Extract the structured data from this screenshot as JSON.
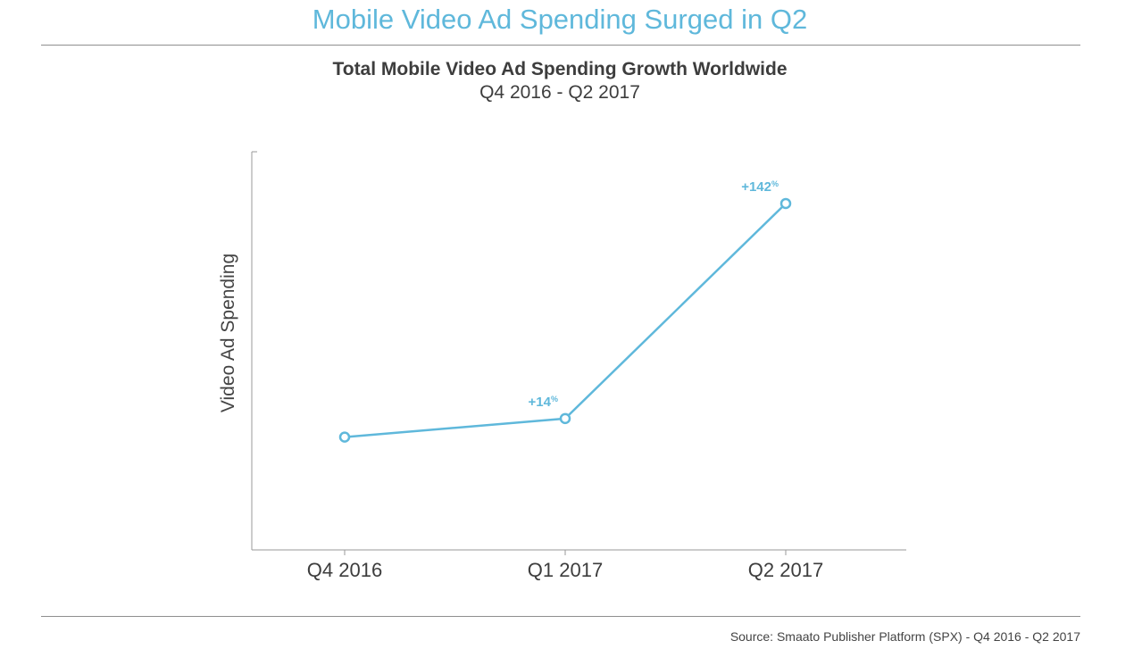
{
  "page": {
    "title": "Mobile Video Ad Spending Surged in Q2",
    "source": "Source: Smaato Publisher Platform (SPX) - Q4 2016 - Q2 2017"
  },
  "colors": {
    "accent": "#5fb8db",
    "axis": "#9a9a9a",
    "text": "#3d3d3d"
  },
  "chart_data": {
    "type": "line",
    "title": "Total Mobile Video Ad Spending Growth Worldwide",
    "subtitle": "Q4 2016 - Q2 2017",
    "xlabel": "",
    "ylabel": "Video Ad Spending",
    "categories": [
      "Q4 2016",
      "Q1 2017",
      "Q2 2017"
    ],
    "series": [
      {
        "values": [
          100,
          114,
          276
        ],
        "labels": [
          "",
          "+14",
          "+142"
        ],
        "label_suffix": "%"
      }
    ],
    "ylim": [
      15,
      315
    ],
    "y_tick_labels": false,
    "grid": false
  }
}
